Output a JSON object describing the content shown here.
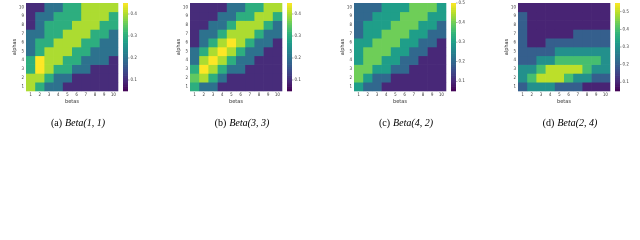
{
  "chart_data": [
    {
      "type": "heatmap",
      "caption_label": "(a)",
      "caption": "Beta(1, 1)",
      "xlabel": "betas",
      "ylabel": "alphas",
      "colormap": "viridis",
      "x": [
        1,
        2,
        3,
        4,
        5,
        6,
        7,
        8,
        9,
        10
      ],
      "y": [
        1,
        2,
        3,
        4,
        5,
        6,
        7,
        8,
        9,
        10
      ],
      "zlim": [
        0.05,
        0.45
      ],
      "zticks": [
        0.1,
        0.2,
        0.3,
        0.4
      ],
      "z": [
        [
          0.4,
          0.3,
          0.2,
          0.2,
          0.1,
          0.1,
          0.1,
          0.1,
          0.1,
          0.1
        ],
        [
          0.4,
          0.4,
          0.3,
          0.2,
          0.2,
          0.1,
          0.1,
          0.1,
          0.1,
          0.1
        ],
        [
          0.3,
          0.45,
          0.4,
          0.3,
          0.3,
          0.2,
          0.2,
          0.1,
          0.1,
          0.1
        ],
        [
          0.3,
          0.45,
          0.4,
          0.4,
          0.3,
          0.3,
          0.2,
          0.2,
          0.2,
          0.1
        ],
        [
          0.2,
          0.3,
          0.4,
          0.4,
          0.4,
          0.3,
          0.3,
          0.2,
          0.2,
          0.2
        ],
        [
          0.2,
          0.3,
          0.3,
          0.4,
          0.4,
          0.4,
          0.3,
          0.3,
          0.2,
          0.2
        ],
        [
          0.2,
          0.2,
          0.3,
          0.3,
          0.4,
          0.4,
          0.4,
          0.3,
          0.3,
          0.2
        ],
        [
          0.1,
          0.2,
          0.3,
          0.3,
          0.3,
          0.4,
          0.4,
          0.4,
          0.3,
          0.3
        ],
        [
          0.1,
          0.2,
          0.2,
          0.3,
          0.3,
          0.3,
          0.4,
          0.4,
          0.4,
          0.3
        ],
        [
          0.1,
          0.1,
          0.2,
          0.2,
          0.3,
          0.3,
          0.4,
          0.4,
          0.4,
          0.4
        ]
      ]
    },
    {
      "type": "heatmap",
      "caption_label": "(b)",
      "caption": "Beta(3, 3)",
      "xlabel": "betas",
      "ylabel": "alphas",
      "colormap": "viridis",
      "x": [
        1,
        2,
        3,
        4,
        5,
        6,
        7,
        8,
        9,
        10
      ],
      "y": [
        1,
        2,
        3,
        4,
        5,
        6,
        7,
        8,
        9,
        10
      ],
      "zlim": [
        0.05,
        0.45
      ],
      "zticks": [
        0.1,
        0.2,
        0.3,
        0.4
      ],
      "z": [
        [
          0.3,
          0.2,
          0.2,
          0.1,
          0.1,
          0.1,
          0.1,
          0.1,
          0.1,
          0.1
        ],
        [
          0.35,
          0.4,
          0.3,
          0.2,
          0.1,
          0.1,
          0.1,
          0.1,
          0.1,
          0.1
        ],
        [
          0.3,
          0.45,
          0.4,
          0.3,
          0.2,
          0.2,
          0.1,
          0.1,
          0.1,
          0.1
        ],
        [
          0.2,
          0.4,
          0.45,
          0.4,
          0.3,
          0.2,
          0.2,
          0.1,
          0.1,
          0.1
        ],
        [
          0.2,
          0.3,
          0.4,
          0.45,
          0.4,
          0.3,
          0.2,
          0.2,
          0.1,
          0.1
        ],
        [
          0.1,
          0.2,
          0.3,
          0.4,
          0.45,
          0.4,
          0.3,
          0.2,
          0.2,
          0.1
        ],
        [
          0.1,
          0.2,
          0.2,
          0.3,
          0.4,
          0.4,
          0.4,
          0.3,
          0.2,
          0.2
        ],
        [
          0.1,
          0.1,
          0.2,
          0.2,
          0.3,
          0.4,
          0.4,
          0.4,
          0.3,
          0.2
        ],
        [
          0.1,
          0.1,
          0.1,
          0.2,
          0.2,
          0.3,
          0.3,
          0.4,
          0.4,
          0.3
        ],
        [
          0.1,
          0.1,
          0.1,
          0.1,
          0.2,
          0.2,
          0.3,
          0.3,
          0.4,
          0.4
        ]
      ]
    },
    {
      "type": "heatmap",
      "caption_label": "(c)",
      "caption": "Beta(4, 2)",
      "xlabel": "betas",
      "ylabel": "alphas",
      "colormap": "viridis",
      "x": [
        1,
        2,
        3,
        4,
        5,
        6,
        7,
        8,
        9,
        10
      ],
      "y": [
        1,
        2,
        3,
        4,
        5,
        6,
        7,
        8,
        9,
        10
      ],
      "zlim": [
        0.05,
        0.5
      ],
      "zticks": [
        0.1,
        0.2,
        0.3,
        0.4,
        0.5
      ],
      "z": [
        [
          0.3,
          0.2,
          0.2,
          0.1,
          0.1,
          0.1,
          0.1,
          0.1,
          0.1,
          0.1
        ],
        [
          0.4,
          0.3,
          0.2,
          0.2,
          0.1,
          0.1,
          0.1,
          0.1,
          0.1,
          0.1
        ],
        [
          0.4,
          0.4,
          0.3,
          0.3,
          0.2,
          0.2,
          0.1,
          0.1,
          0.1,
          0.1
        ],
        [
          0.3,
          0.4,
          0.4,
          0.3,
          0.3,
          0.2,
          0.2,
          0.1,
          0.1,
          0.1
        ],
        [
          0.3,
          0.4,
          0.4,
          0.4,
          0.3,
          0.3,
          0.2,
          0.2,
          0.1,
          0.1
        ],
        [
          0.3,
          0.3,
          0.4,
          0.4,
          0.4,
          0.3,
          0.3,
          0.2,
          0.2,
          0.1
        ],
        [
          0.2,
          0.3,
          0.3,
          0.4,
          0.4,
          0.4,
          0.3,
          0.3,
          0.2,
          0.2
        ],
        [
          0.2,
          0.3,
          0.3,
          0.3,
          0.4,
          0.4,
          0.4,
          0.3,
          0.3,
          0.2
        ],
        [
          0.2,
          0.2,
          0.3,
          0.3,
          0.3,
          0.4,
          0.4,
          0.4,
          0.3,
          0.3
        ],
        [
          0.2,
          0.2,
          0.2,
          0.3,
          0.3,
          0.3,
          0.4,
          0.4,
          0.4,
          0.3
        ]
      ]
    },
    {
      "type": "heatmap",
      "caption_label": "(d)",
      "caption": "Beta(2, 4)",
      "xlabel": "betas",
      "ylabel": "alphas",
      "colormap": "viridis",
      "x": [
        1,
        2,
        3,
        4,
        5,
        6,
        7,
        8,
        9,
        10
      ],
      "y": [
        1,
        2,
        3,
        4,
        5,
        6,
        7,
        8,
        9,
        10
      ],
      "zlim": [
        0.05,
        0.55
      ],
      "zticks": [
        0.1,
        0.2,
        0.3,
        0.4,
        0.5
      ],
      "z": [
        [
          0.2,
          0.3,
          0.3,
          0.3,
          0.2,
          0.2,
          0.2,
          0.1,
          0.1,
          0.1
        ],
        [
          0.3,
          0.4,
          0.5,
          0.5,
          0.5,
          0.4,
          0.3,
          0.3,
          0.2,
          0.2
        ],
        [
          0.3,
          0.3,
          0.4,
          0.5,
          0.5,
          0.5,
          0.5,
          0.4,
          0.3,
          0.3
        ],
        [
          0.2,
          0.2,
          0.3,
          0.3,
          0.4,
          0.4,
          0.4,
          0.4,
          0.4,
          0.3
        ],
        [
          0.2,
          0.2,
          0.2,
          0.2,
          0.3,
          0.3,
          0.3,
          0.3,
          0.3,
          0.3
        ],
        [
          0.2,
          0.1,
          0.1,
          0.2,
          0.2,
          0.2,
          0.2,
          0.2,
          0.2,
          0.2
        ],
        [
          0.2,
          0.1,
          0.1,
          0.1,
          0.1,
          0.1,
          0.2,
          0.2,
          0.2,
          0.2
        ],
        [
          0.2,
          0.1,
          0.1,
          0.1,
          0.1,
          0.1,
          0.1,
          0.1,
          0.1,
          0.1
        ],
        [
          0.2,
          0.1,
          0.1,
          0.1,
          0.1,
          0.1,
          0.1,
          0.1,
          0.1,
          0.1
        ],
        [
          0.1,
          0.1,
          0.1,
          0.1,
          0.1,
          0.1,
          0.1,
          0.1,
          0.1,
          0.1
        ]
      ]
    }
  ]
}
